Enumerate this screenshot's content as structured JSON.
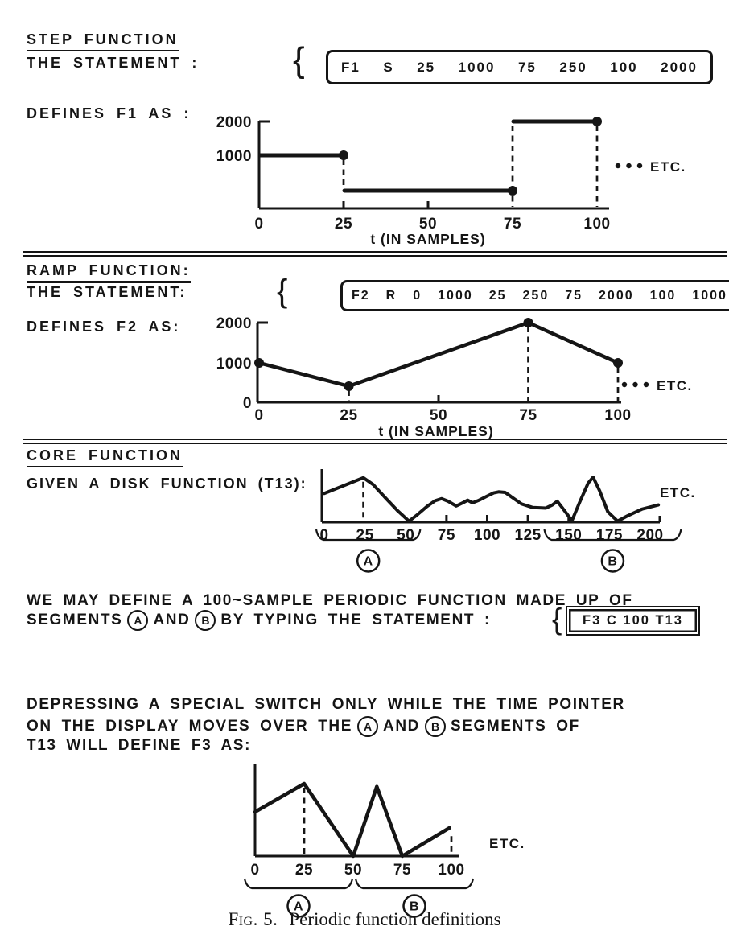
{
  "step_section": {
    "title": "STEP FUNCTION",
    "statement_label": "THE STATEMENT :",
    "brace": "{",
    "statement_tokens": [
      "F1",
      "S",
      "25",
      "1000",
      "75",
      "250",
      "100",
      "2000"
    ],
    "defines_label": "DEFINES F1 AS :"
  },
  "ramp_section": {
    "title": "RAMP FUNCTION:",
    "statement_label": "THE STATEMENT:",
    "brace": "{",
    "statement_tokens": [
      "F2",
      "R",
      "0",
      "1000",
      "25",
      "250",
      "75",
      "2000",
      "100",
      "1000"
    ],
    "defines_label": "DEFINES F2 AS:"
  },
  "core_section": {
    "title": "CORE FUNCTION",
    "given_label": "GIVEN A DISK FUNCTION (T13):"
  },
  "para1": {
    "line1": "WE MAY DEFINE A 100~SAMPLE PERIODIC FUNCTION MADE UP OF",
    "line2_pre": "SEGMENTS",
    "circle_a": "A",
    "line2_mid": "AND",
    "circle_b": "B",
    "line2_post": "BY TYPING THE STATEMENT :",
    "brace": "{",
    "statement_tokens": [
      "F3",
      "C",
      "100",
      "T13"
    ]
  },
  "para2": {
    "line1": "DEPRESSING A SPECIAL SWITCH ONLY WHILE THE TIME POINTER",
    "line2_pre": "ON THE DISPLAY MOVES OVER THE",
    "circle_a": "A",
    "line2_mid": "AND",
    "circle_b": "B",
    "line2_post": "SEGMENTS OF",
    "line3": "T13 WILL DEFINE F3 AS:"
  },
  "caption": {
    "fig": "Fig. 5.",
    "text": "Periodic function definitions"
  },
  "colors": {
    "ink": "#151515",
    "paper": "#ffffff"
  },
  "chart_data": [
    {
      "id": "f1",
      "type": "step",
      "title": "F1",
      "statement": "F1 S 25 1000 75 250 100 2000",
      "segments": [
        {
          "from": 0,
          "to": 25,
          "value": 1000
        },
        {
          "from": 25,
          "to": 75,
          "value": 250
        },
        {
          "from": 75,
          "to": 100,
          "value": 2000
        }
      ],
      "points": [
        {
          "t": 25,
          "v": 1000
        },
        {
          "t": 75,
          "v": 250
        },
        {
          "t": 100,
          "v": 2000
        }
      ],
      "dashes": [
        {
          "t": 25,
          "v_from": 1000,
          "v_to": 250
        },
        {
          "t": 75,
          "v_from": 2000,
          "v_to": 0
        },
        {
          "t": 100,
          "v_from": 2000,
          "v_to": 0
        }
      ],
      "x_ticks": [
        0,
        25,
        50,
        75,
        100
      ],
      "y_ticks": [
        2000,
        1000
      ],
      "small_ticks": [
        25,
        50
      ],
      "xlim": [
        0,
        100
      ],
      "ylim": [
        0,
        2000
      ],
      "xlabel": "t (IN SAMPLES)",
      "etc_label": "ETC.",
      "etc_dots": 3
    },
    {
      "id": "f2",
      "type": "line",
      "title": "F2",
      "statement": "F2 R 0 1000 25 250 75 2000 100 1000",
      "points": [
        {
          "t": 0,
          "v": 1000
        },
        {
          "t": 25,
          "v": 250
        },
        {
          "t": 75,
          "v": 2000
        },
        {
          "t": 100,
          "v": 1000
        }
      ],
      "dashes": [
        {
          "t": 25,
          "v_from": 250,
          "v_to": 0
        },
        {
          "t": 75,
          "v_from": 2000,
          "v_to": 0
        },
        {
          "t": 100,
          "v_from": 1000,
          "v_to": 0
        }
      ],
      "x_ticks": [
        0,
        25,
        50,
        75,
        100
      ],
      "y_ticks": [
        2000,
        1000,
        0
      ],
      "small_ticks": [
        50
      ],
      "xlim": [
        0,
        100
      ],
      "ylim": [
        0,
        2000
      ],
      "xlabel": "t (IN SAMPLES)",
      "etc_label": "ETC.",
      "etc_dots": 3
    },
    {
      "id": "t13",
      "type": "curve",
      "title": "T13 DISK FUNCTION",
      "points": [
        [
          0,
          0.55
        ],
        [
          12,
          0.7
        ],
        [
          24,
          0.85
        ],
        [
          30,
          0.72
        ],
        [
          38,
          0.45
        ],
        [
          45,
          0.22
        ],
        [
          52,
          0.02
        ],
        [
          57,
          0.14
        ],
        [
          63,
          0.3
        ],
        [
          68,
          0.41
        ],
        [
          72,
          0.45
        ],
        [
          76,
          0.4
        ],
        [
          81,
          0.31
        ],
        [
          85,
          0.37
        ],
        [
          88,
          0.42
        ],
        [
          91,
          0.37
        ],
        [
          95,
          0.42
        ],
        [
          100,
          0.5
        ],
        [
          104,
          0.56
        ],
        [
          107,
          0.58
        ],
        [
          111,
          0.57
        ],
        [
          116,
          0.46
        ],
        [
          121,
          0.35
        ],
        [
          128,
          0.28
        ],
        [
          136,
          0.27
        ],
        [
          140,
          0.33
        ],
        [
          143,
          0.4
        ],
        [
          146,
          0.28
        ],
        [
          152,
          0.03
        ],
        [
          157,
          0.4
        ],
        [
          162,
          0.75
        ],
        [
          165,
          0.86
        ],
        [
          169,
          0.6
        ],
        [
          174,
          0.2
        ],
        [
          180,
          0.02
        ],
        [
          186,
          0.12
        ],
        [
          195,
          0.25
        ],
        [
          205,
          0.33
        ]
      ],
      "dashes": [
        {
          "t": 24,
          "v_from": 0.85,
          "v_to": 0
        }
      ],
      "x_ticks": [
        0,
        25,
        50,
        75,
        100,
        125,
        150,
        175,
        200
      ],
      "small_ticks": [
        75,
        100,
        125,
        150
      ],
      "segments": [
        {
          "label": "A",
          "from": 0,
          "to": 55
        },
        {
          "label": "B",
          "from": 140,
          "to": 215
        }
      ],
      "etc_label": "ETC.",
      "etc_dots": 0
    },
    {
      "id": "f3",
      "type": "curve",
      "title": "F3",
      "statement": "F3 C 100 T13",
      "points": [
        [
          0,
          0.61
        ],
        [
          25,
          1.0
        ],
        [
          50,
          0.0
        ],
        [
          62,
          0.96
        ],
        [
          75,
          0.0
        ],
        [
          99,
          0.39
        ]
      ],
      "dashes": [
        {
          "t": 25,
          "v_from": 1.0,
          "v_to": 0
        },
        {
          "t": 100,
          "v_from": 0.33,
          "v_to": 0
        }
      ],
      "x_ticks": [
        0,
        25,
        50,
        75,
        100
      ],
      "small_ticks": [],
      "segments": [
        {
          "label": "A",
          "from": 0,
          "to": 50
        },
        {
          "label": "B",
          "from": 50,
          "to": 100
        }
      ],
      "etc_label": "ETC.",
      "etc_dots": 0
    }
  ]
}
